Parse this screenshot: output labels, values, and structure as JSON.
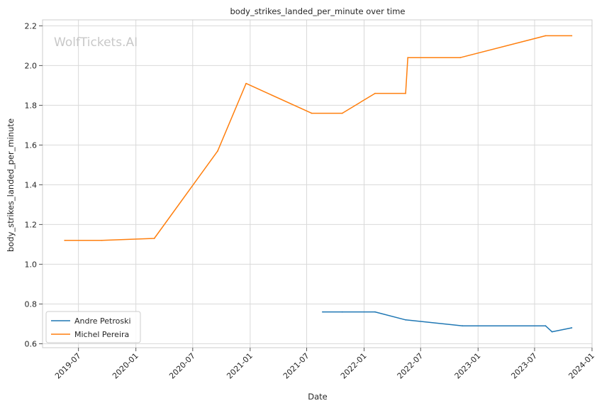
{
  "chart_data": {
    "type": "line",
    "title": "body_strikes_landed_per_minute over time",
    "xlabel": "Date",
    "ylabel": "body_strikes_landed_per_minute",
    "watermark": "WolfTickets.AI",
    "x_ticks": [
      "2019-07",
      "2020-01",
      "2020-07",
      "2021-01",
      "2021-07",
      "2022-01",
      "2022-07",
      "2023-01",
      "2023-07",
      "2024-01"
    ],
    "y_ticks": [
      "0.6",
      "0.8",
      "1.0",
      "1.2",
      "1.4",
      "1.6",
      "1.8",
      "2.0",
      "2.2"
    ],
    "xlim": [
      "2019-03-08",
      "2024-01-01"
    ],
    "ylim": [
      0.58,
      2.23
    ],
    "grid": true,
    "legend_position": "lower-left",
    "series": [
      {
        "name": "Andre Petroski",
        "color": "#1f77b4",
        "points": [
          [
            "2021-08-21",
            0.76
          ],
          [
            "2021-10-23",
            0.76
          ],
          [
            "2022-02-05",
            0.76
          ],
          [
            "2022-05-14",
            0.72
          ],
          [
            "2022-11-12",
            0.69
          ],
          [
            "2023-08-05",
            0.69
          ],
          [
            "2023-08-26",
            0.66
          ],
          [
            "2023-10-28",
            0.68
          ]
        ]
      },
      {
        "name": "Michel Pereira",
        "color": "#ff7f0e",
        "points": [
          [
            "2019-05-18",
            1.12
          ],
          [
            "2019-09-14",
            1.12
          ],
          [
            "2020-02-29",
            1.13
          ],
          [
            "2020-09-19",
            1.57
          ],
          [
            "2020-12-19",
            1.91
          ],
          [
            "2021-07-17",
            1.76
          ],
          [
            "2021-10-23",
            1.76
          ],
          [
            "2022-02-05",
            1.86
          ],
          [
            "2022-05-14",
            1.86
          ],
          [
            "2022-05-21",
            2.04
          ],
          [
            "2022-11-05",
            2.04
          ],
          [
            "2023-08-05",
            2.15
          ],
          [
            "2023-10-28",
            2.15
          ]
        ]
      }
    ]
  }
}
